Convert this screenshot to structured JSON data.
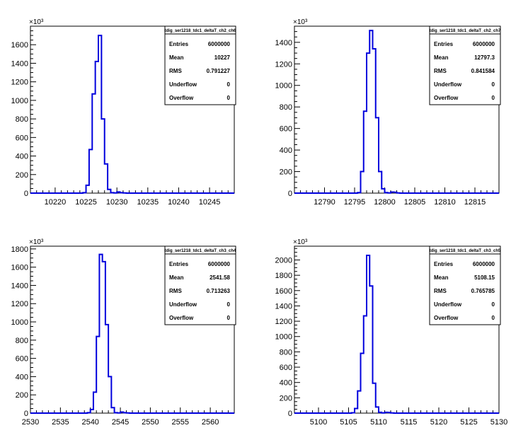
{
  "colors": {
    "histogram": "#0000dd",
    "frame": "#000000",
    "background": "#ffffff"
  },
  "chart_data": [
    {
      "type": "histogram",
      "title": "tdig_ser1218_tdc1_deltaT_ch2_ch6",
      "y_exponent": "×10³",
      "xlim": [
        10216,
        10249
      ],
      "ylim": [
        0,
        1800
      ],
      "x_ticks": [
        10220,
        10225,
        10230,
        10235,
        10240,
        10245
      ],
      "y_ticks": [
        0,
        200,
        400,
        600,
        800,
        1000,
        1200,
        1400,
        1600
      ],
      "bin_width": 0.5,
      "bins": [
        {
          "x": 10224.5,
          "y": 5
        },
        {
          "x": 10225,
          "y": 85
        },
        {
          "x": 10225.5,
          "y": 470
        },
        {
          "x": 10226,
          "y": 1070
        },
        {
          "x": 10226.5,
          "y": 1420
        },
        {
          "x": 10227,
          "y": 1700
        },
        {
          "x": 10227.5,
          "y": 800
        },
        {
          "x": 10228,
          "y": 315
        },
        {
          "x": 10228.5,
          "y": 40
        },
        {
          "x": 10229,
          "y": 5
        },
        {
          "x": 10229.5,
          "y": 2
        },
        {
          "x": 10230,
          "y": 12
        },
        {
          "x": 10230.5,
          "y": 5
        },
        {
          "x": 10231,
          "y": 2
        }
      ],
      "stats": [
        {
          "label": "Entries",
          "value": "6000000"
        },
        {
          "label": "Mean",
          "value": "10227"
        },
        {
          "label": "RMS",
          "value": "0.791227"
        },
        {
          "label": "Underflow",
          "value": "0"
        },
        {
          "label": "Overflow",
          "value": "0"
        }
      ]
    },
    {
      "type": "histogram",
      "title": "tdig_ser1218_tdc1_deltaT_ch2_ch7",
      "y_exponent": "×10³",
      "xlim": [
        12785,
        12819
      ],
      "ylim": [
        0,
        1550
      ],
      "x_ticks": [
        12790,
        12795,
        12800,
        12805,
        12810,
        12815
      ],
      "y_ticks": [
        0,
        200,
        400,
        600,
        800,
        1000,
        1200,
        1400
      ],
      "bin_width": 0.5,
      "bins": [
        {
          "x": 12795.5,
          "y": 5
        },
        {
          "x": 12796,
          "y": 200
        },
        {
          "x": 12796.5,
          "y": 760
        },
        {
          "x": 12797,
          "y": 1300
        },
        {
          "x": 12797.5,
          "y": 1510
        },
        {
          "x": 12798,
          "y": 1340
        },
        {
          "x": 12798.5,
          "y": 700
        },
        {
          "x": 12799,
          "y": 200
        },
        {
          "x": 12799.5,
          "y": 40
        },
        {
          "x": 12800,
          "y": 5
        },
        {
          "x": 12800.5,
          "y": 2
        },
        {
          "x": 12801,
          "y": 10
        },
        {
          "x": 12801.5,
          "y": 8
        },
        {
          "x": 12802,
          "y": 2
        }
      ],
      "stats": [
        {
          "label": "Entries",
          "value": "6000000"
        },
        {
          "label": "Mean",
          "value": "12797.3"
        },
        {
          "label": "RMS",
          "value": "0.841584"
        },
        {
          "label": "Underflow",
          "value": "0"
        },
        {
          "label": "Overflow",
          "value": "0"
        }
      ]
    },
    {
      "type": "histogram",
      "title": "tdig_ser1218_tdc1_deltaT_ch3_ch4",
      "y_exponent": "×10³",
      "xlim": [
        2530,
        2564
      ],
      "ylim": [
        0,
        1830
      ],
      "x_ticks": [
        2530,
        2535,
        2540,
        2545,
        2550,
        2555,
        2560
      ],
      "y_ticks": [
        0,
        200,
        400,
        600,
        800,
        1000,
        1200,
        1400,
        1600,
        1800
      ],
      "bin_width": 0.5,
      "bins": [
        {
          "x": 2539.5,
          "y": 5
        },
        {
          "x": 2540,
          "y": 40
        },
        {
          "x": 2540.5,
          "y": 230
        },
        {
          "x": 2541,
          "y": 840
        },
        {
          "x": 2541.5,
          "y": 1740
        },
        {
          "x": 2542,
          "y": 1660
        },
        {
          "x": 2542.5,
          "y": 970
        },
        {
          "x": 2543,
          "y": 400
        },
        {
          "x": 2543.5,
          "y": 60
        },
        {
          "x": 2544,
          "y": 5
        },
        {
          "x": 2544.5,
          "y": 2
        },
        {
          "x": 2545,
          "y": 12
        },
        {
          "x": 2545.5,
          "y": 5
        },
        {
          "x": 2546,
          "y": 2
        }
      ],
      "stats": [
        {
          "label": "Entries",
          "value": "6000000"
        },
        {
          "label": "Mean",
          "value": "2541.58"
        },
        {
          "label": "RMS",
          "value": "0.713263"
        },
        {
          "label": "Underflow",
          "value": "0"
        },
        {
          "label": "Overflow",
          "value": "0"
        }
      ]
    },
    {
      "type": "histogram",
      "title": "tdig_ser1218_tdc1_deltaT_ch3_ch5",
      "y_exponent": "×10³",
      "xlim": [
        5096,
        5130
      ],
      "ylim": [
        0,
        2180
      ],
      "x_ticks": [
        5100,
        5105,
        5110,
        5115,
        5120,
        5125,
        5130
      ],
      "y_ticks": [
        0,
        200,
        400,
        600,
        800,
        1000,
        1200,
        1400,
        1600,
        1800,
        2000
      ],
      "bin_width": 0.5,
      "bins": [
        {
          "x": 5105.5,
          "y": 5
        },
        {
          "x": 5106,
          "y": 60
        },
        {
          "x": 5106.5,
          "y": 290
        },
        {
          "x": 5107,
          "y": 780
        },
        {
          "x": 5107.5,
          "y": 1270
        },
        {
          "x": 5108,
          "y": 2060
        },
        {
          "x": 5108.5,
          "y": 1660
        },
        {
          "x": 5109,
          "y": 390
        },
        {
          "x": 5109.5,
          "y": 80
        },
        {
          "x": 5110,
          "y": 10
        },
        {
          "x": 5110.5,
          "y": 2
        },
        {
          "x": 5111,
          "y": 10
        },
        {
          "x": 5111.5,
          "y": 8
        },
        {
          "x": 5112,
          "y": 2
        }
      ],
      "stats": [
        {
          "label": "Entries",
          "value": "6000000"
        },
        {
          "label": "Mean",
          "value": "5108.15"
        },
        {
          "label": "RMS",
          "value": "0.765785"
        },
        {
          "label": "Underflow",
          "value": "0"
        },
        {
          "label": "Overflow",
          "value": "0"
        }
      ]
    }
  ]
}
